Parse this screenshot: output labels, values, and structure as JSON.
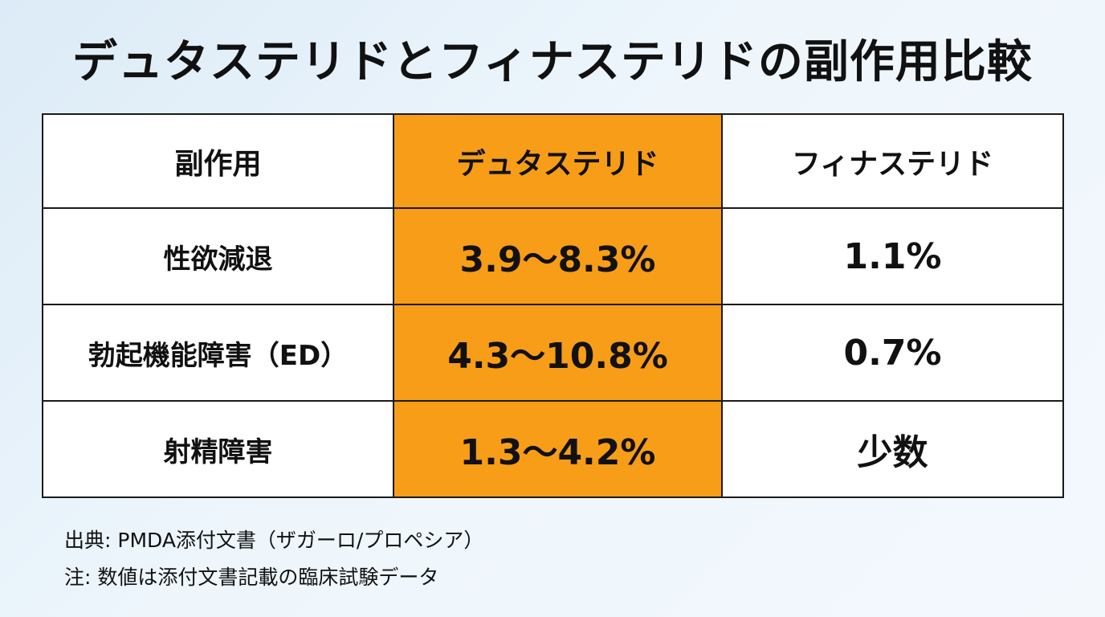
{
  "title": "デュタステリドとフィナステリドの副作用比較",
  "table": {
    "headers": [
      "副作用",
      "デュタステリド",
      "フィナステリド"
    ],
    "rows": [
      {
        "effect": "性欲減退",
        "dutasteride": "3.9〜8.3%",
        "finasteride": "1.1%"
      },
      {
        "effect": "勃起機能障害（ED）",
        "dutasteride": "4.3〜10.8%",
        "finasteride": "0.7%"
      },
      {
        "effect": "射精障害",
        "dutasteride": "1.3〜4.2%",
        "finasteride": "少数"
      }
    ],
    "highlight_color": "#f89d17"
  },
  "notes": {
    "source": "出典: PMDA添付文書（ザガーロ/プロペシア）",
    "note": "注: 数値は添付文書記載の臨床試験データ"
  }
}
